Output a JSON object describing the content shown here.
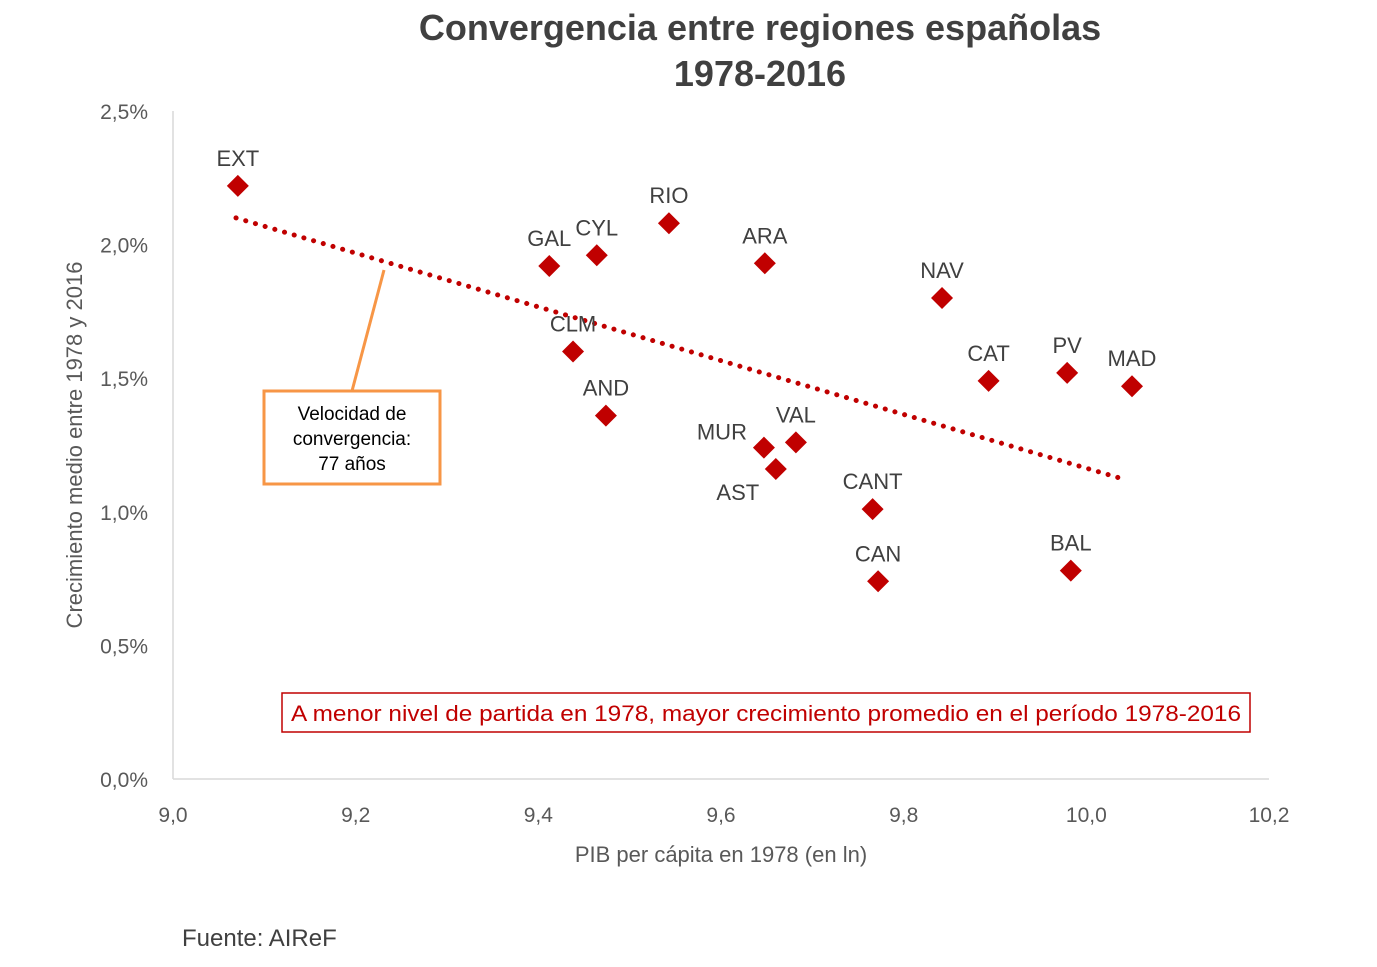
{
  "chart_data": {
    "type": "scatter",
    "title": "Convergencia entre regiones españolas",
    "subtitle": "1978-2016",
    "xlabel": "PIB per cápita en 1978 (en ln)",
    "ylabel": "Crecimiento medio entre 1978 y 2016",
    "xlim": [
      9.0,
      10.2
    ],
    "ylim": [
      0.0,
      2.5
    ],
    "x_ticks": [
      "9,0",
      "9,2",
      "9,4",
      "9,6",
      "9,8",
      "10,0",
      "10,2"
    ],
    "y_ticks": [
      "0,0%",
      "0,5%",
      "1,0%",
      "1,5%",
      "2,0%",
      "2,5%"
    ],
    "grid": false,
    "marker": "diamond",
    "colors": {
      "points": "#C00000",
      "trend": "#C00000",
      "callout": "#F79646",
      "note": "#C00000"
    },
    "points": [
      {
        "label": "EXT",
        "x": 9.071,
        "y": 2.22
      },
      {
        "label": "GAL",
        "x": 9.412,
        "y": 1.92
      },
      {
        "label": "CYL",
        "x": 9.464,
        "y": 1.96
      },
      {
        "label": "RIO",
        "x": 9.543,
        "y": 2.08
      },
      {
        "label": "ARA",
        "x": 9.648,
        "y": 1.93
      },
      {
        "label": "NAV",
        "x": 9.842,
        "y": 1.8
      },
      {
        "label": "CLM",
        "x": 9.438,
        "y": 1.6
      },
      {
        "label": "AND",
        "x": 9.474,
        "y": 1.36
      },
      {
        "label": "CAT",
        "x": 9.893,
        "y": 1.49
      },
      {
        "label": "PV",
        "x": 9.979,
        "y": 1.52
      },
      {
        "label": "MAD",
        "x": 10.05,
        "y": 1.47
      },
      {
        "label": "MUR",
        "x": 9.647,
        "y": 1.24
      },
      {
        "label": "VAL",
        "x": 9.682,
        "y": 1.26
      },
      {
        "label": "AST",
        "x": 9.66,
        "y": 1.16
      },
      {
        "label": "CANT",
        "x": 9.766,
        "y": 1.01
      },
      {
        "label": "CAN",
        "x": 9.772,
        "y": 0.74
      },
      {
        "label": "BAL",
        "x": 9.983,
        "y": 0.78
      }
    ],
    "trendline": {
      "type": "linear",
      "from": {
        "x": 9.069,
        "y": 2.1
      },
      "to": {
        "x": 10.043,
        "y": 1.12
      }
    },
    "annotations": {
      "callout": [
        "Velocidad de",
        "convergencia:",
        "77 años"
      ],
      "note": "A menor nivel de partida en 1978, mayor crecimiento promedio en el período 1978-2016"
    }
  },
  "source": "Fuente: AIReF"
}
